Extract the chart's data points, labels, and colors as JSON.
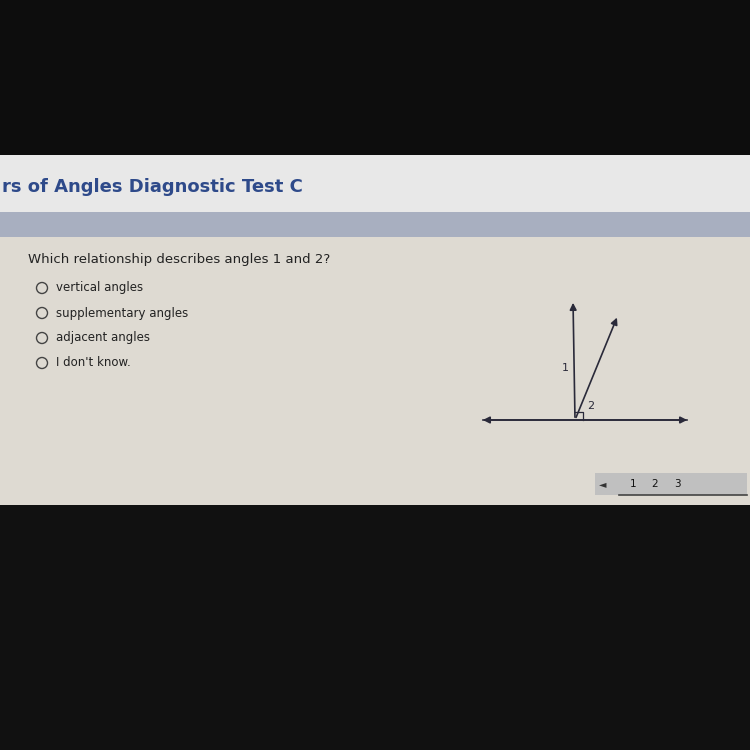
{
  "bg_outer": "#0d0d0d",
  "bg_header_dark": "#1a1a2e",
  "bg_header": "#f0f0f0",
  "bg_separator": "#a8afc0",
  "bg_content": "#dedad2",
  "bg_bottom": "#111111",
  "title_text": "rs of Angles Diagnostic Test C",
  "title_color": "#2e4a8a",
  "question_text": "Which relationship describes angles 1 and 2?",
  "options": [
    "vertical angles",
    "supplementary angles",
    "adjacent angles",
    "I don't know."
  ],
  "question_color": "#222222",
  "option_color": "#222222",
  "circle_color": "#444444",
  "nav_bg": "#b0b0b0",
  "nav_numbers": [
    "1",
    "2",
    "3"
  ],
  "nav_arrow": "◄",
  "line_color": "#2a2a3a",
  "label1": "1",
  "label2": "2"
}
